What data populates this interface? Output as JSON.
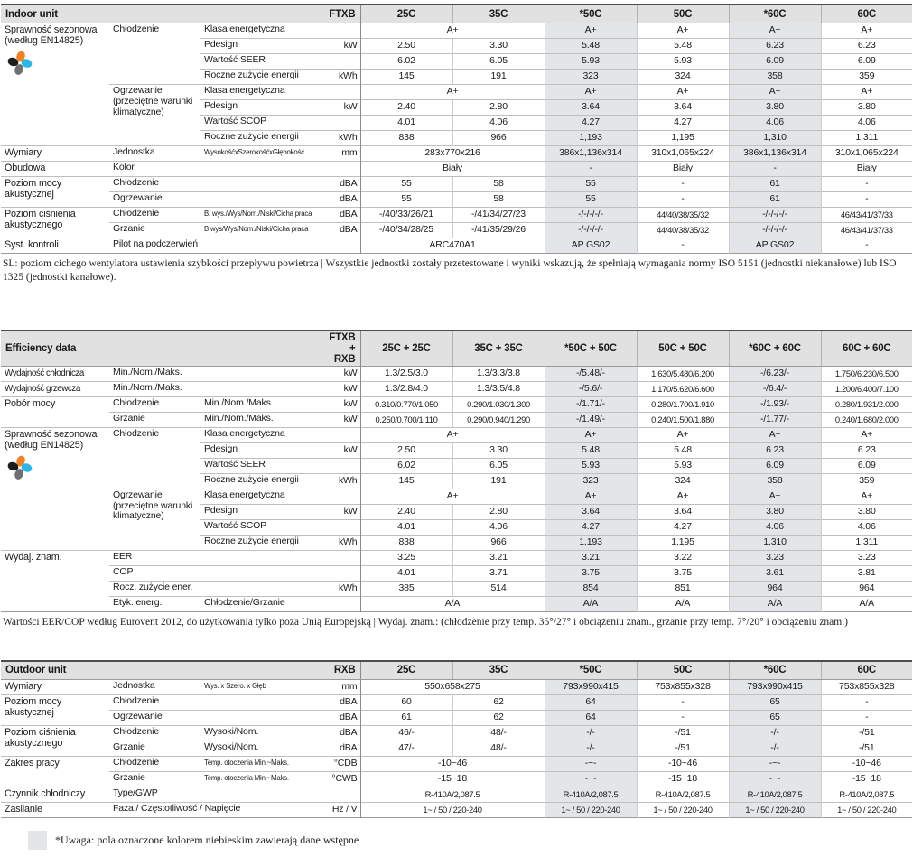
{
  "colors": {
    "header_bg": "#e1e1e1",
    "preliminary_bg": "#e3e5e8",
    "icon_orange": "#f08223",
    "icon_black": "#1d1d1b",
    "icon_cyan": "#2bb7ea",
    "icon_gray": "#6e6f72"
  },
  "tables": [
    {
      "name": "indoor-unit",
      "title": "Indoor unit",
      "model_label": "FTXB",
      "columns": [
        "25C",
        "35C",
        "*50C",
        "50C",
        "*60C",
        "60C"
      ],
      "preliminary_columns": [
        2,
        4
      ],
      "rows": [
        {
          "labels": [
            {
              "text": "Sprawność sezonowa (według EN14825)",
              "col": "a",
              "rowspan": 8,
              "icon": true
            },
            {
              "text": "Chłodzenie",
              "col": "b",
              "rowspan": 4
            },
            {
              "text": "Klasa energetyczna",
              "col": "c"
            }
          ],
          "unit": "",
          "values": [
            {
              "text": "A+",
              "span": 2
            },
            "A+",
            "A+",
            "A+",
            "A+"
          ]
        },
        {
          "labels": [
            {
              "text": "Pdesign",
              "col": "c"
            }
          ],
          "unit": "kW",
          "values": [
            "2.50",
            "3.30",
            "5.48",
            "5.48",
            "6.23",
            "6.23"
          ]
        },
        {
          "labels": [
            {
              "text": "Wartość SEER",
              "col": "c"
            }
          ],
          "unit": "",
          "values": [
            "6.02",
            "6.05",
            "5.93",
            "5.93",
            "6.09",
            "6.09"
          ]
        },
        {
          "labels": [
            {
              "text": "Roczne zużycie energii",
              "col": "c"
            }
          ],
          "unit": "kWh",
          "values": [
            "145",
            "191",
            "323",
            "324",
            "358",
            "359"
          ]
        },
        {
          "labels": [
            {
              "text": "Ogrzewanie (przeciętne warunki klimatyczne)",
              "col": "b",
              "rowspan": 4
            },
            {
              "text": "Klasa energetyczna",
              "col": "c"
            }
          ],
          "unit": "",
          "values": [
            {
              "text": "A+",
              "span": 2
            },
            "A+",
            "A+",
            "A+",
            "A+"
          ]
        },
        {
          "labels": [
            {
              "text": "Pdesign",
              "col": "c"
            }
          ],
          "unit": "kW",
          "values": [
            "2.40",
            "2.80",
            "3.64",
            "3.64",
            "3.80",
            "3.80"
          ]
        },
        {
          "labels": [
            {
              "text": "Wartość SCOP",
              "col": "c"
            }
          ],
          "unit": "",
          "values": [
            "4.01",
            "4.06",
            "4.27",
            "4.27",
            "4.06",
            "4.06"
          ]
        },
        {
          "labels": [
            {
              "text": "Roczne zużycie energii",
              "col": "c"
            }
          ],
          "unit": "kWh",
          "values": [
            "838",
            "966",
            "1,193",
            "1,195",
            "1,310",
            "1,311"
          ]
        },
        {
          "labels": [
            {
              "text": "Wymiary",
              "col": "a"
            },
            {
              "text": "Jednostka",
              "col": "b"
            },
            {
              "text": "WysokośćxSzerokośćxGłębokość",
              "col": "c",
              "small": true
            }
          ],
          "unit": "mm",
          "values": [
            {
              "text": "283x770x216",
              "span": 2
            },
            "386x1,136x314",
            "310x1,065x224",
            "386x1,136x314",
            "310x1,065x224"
          ]
        },
        {
          "labels": [
            {
              "text": "Obudowa",
              "col": "a"
            },
            {
              "text": "Kolor",
              "col": "b",
              "colspan": 2
            }
          ],
          "unit": "",
          "values": [
            {
              "text": "Biały",
              "span": 2
            },
            "-",
            "Biały",
            "-",
            "Biały"
          ]
        },
        {
          "labels": [
            {
              "text": "Poziom mocy akustycznej",
              "col": "a",
              "rowspan": 2
            },
            {
              "text": "Chłodzenie",
              "col": "b",
              "colspan": 2
            }
          ],
          "unit": "dBA",
          "values": [
            "55",
            "58",
            "55",
            "-",
            "61",
            "-"
          ]
        },
        {
          "labels": [
            {
              "text": "Ogrzewanie",
              "col": "b",
              "colspan": 2
            }
          ],
          "unit": "dBA",
          "values": [
            "55",
            "58",
            "55",
            "-",
            "61",
            "-"
          ]
        },
        {
          "labels": [
            {
              "text": "Poziom ciśnienia akustycznego",
              "col": "a",
              "rowspan": 2
            },
            {
              "text": "Chłodzenie",
              "col": "b"
            },
            {
              "text": "B. wys./Wys/Nom./Niski/Cicha praca",
              "col": "c",
              "small": true
            }
          ],
          "unit": "dBA",
          "values": [
            "-/40/33/26/21",
            "-/41/34/27/23",
            "-/-/-/-/-",
            "44/40/38/35/32",
            "-/-/-/-/-",
            "46/43/41/37/33"
          ]
        },
        {
          "labels": [
            {
              "text": "Grzanie",
              "col": "b"
            },
            {
              "text": "B wys/Wys/Nom./Niski/Cicha praca",
              "col": "c",
              "small": true
            }
          ],
          "unit": "dBA",
          "values": [
            "-/40/34/28/25",
            "-/41/35/29/26",
            "-/-/-/-/-",
            "44/40/38/35/32",
            "-/-/-/-/-",
            "46/43/41/37/33"
          ]
        },
        {
          "labels": [
            {
              "text": "Syst. kontroli",
              "col": "a"
            },
            {
              "text": "Pilot na podczerwień",
              "col": "b",
              "colspan": 2
            }
          ],
          "unit": "",
          "values": [
            {
              "text": "ARC470A1",
              "span": 2
            },
            "AP GS02",
            "-",
            "AP GS02",
            "-"
          ]
        }
      ]
    },
    {
      "name": "efficiency-data",
      "title": "Efficiency data",
      "model_label": "FTXB + RXB",
      "columns": [
        "25C + 25C",
        "35C + 35C",
        "*50C + 50C",
        "50C + 50C",
        "*60C + 60C",
        "60C + 60C"
      ],
      "preliminary_columns": [
        2,
        4
      ],
      "rows": [
        {
          "labels": [
            {
              "text": "Wydajność chłodnicza",
              "col": "a",
              "cond": true
            },
            {
              "text": "Min./Nom./Maks.",
              "col": "b",
              "colspan": 2
            }
          ],
          "unit": "kW",
          "values": [
            "1.3/2.5/3.0",
            "1.3/3.3/3.8",
            "-/5.48/-",
            "1.630/5.480/6.200",
            "-/6.23/-",
            "1.750/6.230/6.500"
          ]
        },
        {
          "labels": [
            {
              "text": "Wydajność grzewcza",
              "col": "a",
              "cond": true
            },
            {
              "text": "Min./Nom./Maks.",
              "col": "b",
              "colspan": 2
            }
          ],
          "unit": "kW",
          "values": [
            "1.3/2.8/4.0",
            "1.3/3.5/4.8",
            "-/5.6/-",
            "1.170/5.620/6.600",
            "-/6.4/-",
            "1.200/6.400/7.100"
          ]
        },
        {
          "labels": [
            {
              "text": "Pobór mocy",
              "col": "a",
              "rowspan": 2
            },
            {
              "text": "Chłodzenie",
              "col": "b"
            },
            {
              "text": "Min./Nom./Maks.",
              "col": "c"
            }
          ],
          "unit": "kW",
          "values": [
            "0.310/0.770/1.050",
            "0.290/1.030/1.300",
            "-/1.71/-",
            "0.280/1.700/1.910",
            "-/1.93/-",
            "0.280/1.931/2.000"
          ]
        },
        {
          "labels": [
            {
              "text": "Grzanie",
              "col": "b"
            },
            {
              "text": "Min./Nom./Maks.",
              "col": "c"
            }
          ],
          "unit": "kW",
          "values": [
            "0.250/0.700/1.110",
            "0.290/0.940/1.290",
            "-/1.49/-",
            "0.240/1.500/1.880",
            "-/1.77/-",
            "0.240/1.680/2.000"
          ]
        },
        {
          "labels": [
            {
              "text": "Sprawność sezonowa (według EN14825)",
              "col": "a",
              "rowspan": 8,
              "icon": true
            },
            {
              "text": "Chłodzenie",
              "col": "b",
              "rowspan": 4
            },
            {
              "text": "Klasa energetyczna",
              "col": "c"
            }
          ],
          "unit": "",
          "values": [
            {
              "text": "A+",
              "span": 2
            },
            "A+",
            "A+",
            "A+",
            "A+"
          ]
        },
        {
          "labels": [
            {
              "text": "Pdesign",
              "col": "c"
            }
          ],
          "unit": "kW",
          "values": [
            "2.50",
            "3.30",
            "5.48",
            "5.48",
            "6.23",
            "6.23"
          ]
        },
        {
          "labels": [
            {
              "text": "Wartość SEER",
              "col": "c"
            }
          ],
          "unit": "",
          "values": [
            "6.02",
            "6.05",
            "5.93",
            "5.93",
            "6.09",
            "6.09"
          ]
        },
        {
          "labels": [
            {
              "text": "Roczne zużycie energii",
              "col": "c"
            }
          ],
          "unit": "kWh",
          "values": [
            "145",
            "191",
            "323",
            "324",
            "358",
            "359"
          ]
        },
        {
          "labels": [
            {
              "text": "Ogrzewanie (przeciętne warunki klimatyczne)",
              "col": "b",
              "rowspan": 4
            },
            {
              "text": "Klasa energetyczna",
              "col": "c"
            }
          ],
          "unit": "",
          "values": [
            {
              "text": "A+",
              "span": 2
            },
            "A+",
            "A+",
            "A+",
            "A+"
          ]
        },
        {
          "labels": [
            {
              "text": "Pdesign",
              "col": "c"
            }
          ],
          "unit": "kW",
          "values": [
            "2.40",
            "2.80",
            "3.64",
            "3.64",
            "3.80",
            "3.80"
          ]
        },
        {
          "labels": [
            {
              "text": "Wartość SCOP",
              "col": "c"
            }
          ],
          "unit": "",
          "values": [
            "4.01",
            "4.06",
            "4.27",
            "4.27",
            "4.06",
            "4.06"
          ]
        },
        {
          "labels": [
            {
              "text": "Roczne zużycie energii",
              "col": "c"
            }
          ],
          "unit": "kWh",
          "values": [
            "838",
            "966",
            "1,193",
            "1,195",
            "1,310",
            "1,311"
          ]
        },
        {
          "labels": [
            {
              "text": "Wydaj. znam.",
              "col": "a",
              "rowspan": 4
            },
            {
              "text": "EER",
              "col": "b",
              "colspan": 2
            }
          ],
          "unit": "",
          "values": [
            "3.25",
            "3.21",
            "3.21",
            "3.22",
            "3.23",
            "3.23"
          ]
        },
        {
          "labels": [
            {
              "text": "COP",
              "col": "b",
              "colspan": 2
            }
          ],
          "unit": "",
          "values": [
            "4.01",
            "3.71",
            "3.75",
            "3.75",
            "3.61",
            "3.81"
          ]
        },
        {
          "labels": [
            {
              "text": "Rocz. zużycie ener.",
              "col": "b",
              "colspan": 2
            }
          ],
          "unit": "kWh",
          "values": [
            "385",
            "514",
            "854",
            "851",
            "964",
            "964"
          ]
        },
        {
          "labels": [
            {
              "text": "Etyk. energ.",
              "col": "b"
            },
            {
              "text": "Chłodzenie/Grzanie",
              "col": "c"
            }
          ],
          "unit": "",
          "values": [
            {
              "text": "A/A",
              "span": 2
            },
            "A/A",
            "A/A",
            "A/A",
            "A/A"
          ]
        }
      ]
    },
    {
      "name": "outdoor-unit",
      "title": "Outdoor unit",
      "model_label": "RXB",
      "columns": [
        "25C",
        "35C",
        "*50C",
        "50C",
        "*60C",
        "60C"
      ],
      "preliminary_columns": [
        2,
        4
      ],
      "rows": [
        {
          "labels": [
            {
              "text": "Wymiary",
              "col": "a"
            },
            {
              "text": "Jednostka",
              "col": "b"
            },
            {
              "text": "Wys. x Szero. x Głęb",
              "col": "c",
              "small": true
            }
          ],
          "unit": "mm",
          "values": [
            {
              "text": "550x658x275",
              "span": 2
            },
            "793x990x415",
            "753x855x328",
            "793x990x415",
            "753x855x328"
          ]
        },
        {
          "labels": [
            {
              "text": "Poziom mocy akustycznej",
              "col": "a",
              "rowspan": 2
            },
            {
              "text": "Chłodzenie",
              "col": "b",
              "colspan": 2
            }
          ],
          "unit": "dBA",
          "values": [
            "60",
            "62",
            "64",
            "-",
            "65",
            "-"
          ]
        },
        {
          "labels": [
            {
              "text": "Ogrzewanie",
              "col": "b",
              "colspan": 2
            }
          ],
          "unit": "dBA",
          "values": [
            "61",
            "62",
            "64",
            "-",
            "65",
            "-"
          ]
        },
        {
          "labels": [
            {
              "text": "Poziom ciśnienia akustycznego",
              "col": "a",
              "rowspan": 2
            },
            {
              "text": "Chłodzenie",
              "col": "b"
            },
            {
              "text": "Wysoki/Nom.",
              "col": "c"
            }
          ],
          "unit": "dBA",
          "values": [
            "46/-",
            "48/-",
            "-/-",
            "-/51",
            "-/-",
            "-/51"
          ]
        },
        {
          "labels": [
            {
              "text": "Grzanie",
              "col": "b"
            },
            {
              "text": "Wysoki/Nom.",
              "col": "c"
            }
          ],
          "unit": "dBA",
          "values": [
            "47/-",
            "48/-",
            "-/-",
            "-/51",
            "-/-",
            "-/51"
          ]
        },
        {
          "labels": [
            {
              "text": "Zakres pracy",
              "col": "a",
              "rowspan": 2
            },
            {
              "text": "Chłodzenie",
              "col": "b"
            },
            {
              "text": "Temp. otoczenia   Min.~Maks.",
              "col": "c",
              "small": true
            }
          ],
          "unit": "°CDB",
          "values": [
            {
              "text": "-10~46",
              "span": 2
            },
            "-~-",
            "-10~46",
            "-~-",
            "-10~46"
          ]
        },
        {
          "labels": [
            {
              "text": "Grzanie",
              "col": "b"
            },
            {
              "text": "Temp. otoczenia   Min.~Maks.",
              "col": "c",
              "small": true
            }
          ],
          "unit": "°CWB",
          "values": [
            {
              "text": "-15~18",
              "span": 2
            },
            "-~-",
            "-15~18",
            "-~-",
            "-15~18"
          ]
        },
        {
          "labels": [
            {
              "text": "Czynnik chłodniczy",
              "col": "a"
            },
            {
              "text": "Type/GWP",
              "col": "b",
              "colspan": 2
            }
          ],
          "unit": "",
          "values": [
            {
              "text": "R-410A/2,087.5",
              "span": 2
            },
            "R-410A/2,087.5",
            "R-410A/2,087.5",
            "R-410A/2,087.5",
            "R-410A/2,087.5"
          ]
        },
        {
          "labels": [
            {
              "text": "Zasilanie",
              "col": "a"
            },
            {
              "text": "Faza / Częstotliwość / Napięcie",
              "col": "b",
              "colspan": 2
            }
          ],
          "unit": "Hz / V",
          "values": [
            {
              "text": "1~ / 50 / 220-240",
              "span": 2
            },
            "1~ / 50 / 220-240",
            "1~ / 50 / 220-240",
            "1~ / 50 / 220-240",
            "1~ / 50 / 220-240"
          ]
        }
      ]
    }
  ],
  "footnotes": {
    "indoor": "SL: poziom cichego wentylatora ustawienia szybkości przepływu powietrza | Wszystkie jednostki zostały przetestowane i wyniki wskazują, że spełniają wymagania normy ISO 5151 (jednostki niekanałowe) lub ISO 1325 (jednostki kanałowe).",
    "efficiency": "Wartości EER/COP według Eurovent 2012, do użytkowania tylko poza Unią Europejską | Wydaj. znam.: (chłodzenie przy temp. 35°/27° i obciążeniu znam., grzanie przy temp. 7°/20° i obciążeniu znam.)",
    "preliminary": "*Uwaga: pola oznaczone kolorem niebieskim zawierają dane wstępne"
  }
}
